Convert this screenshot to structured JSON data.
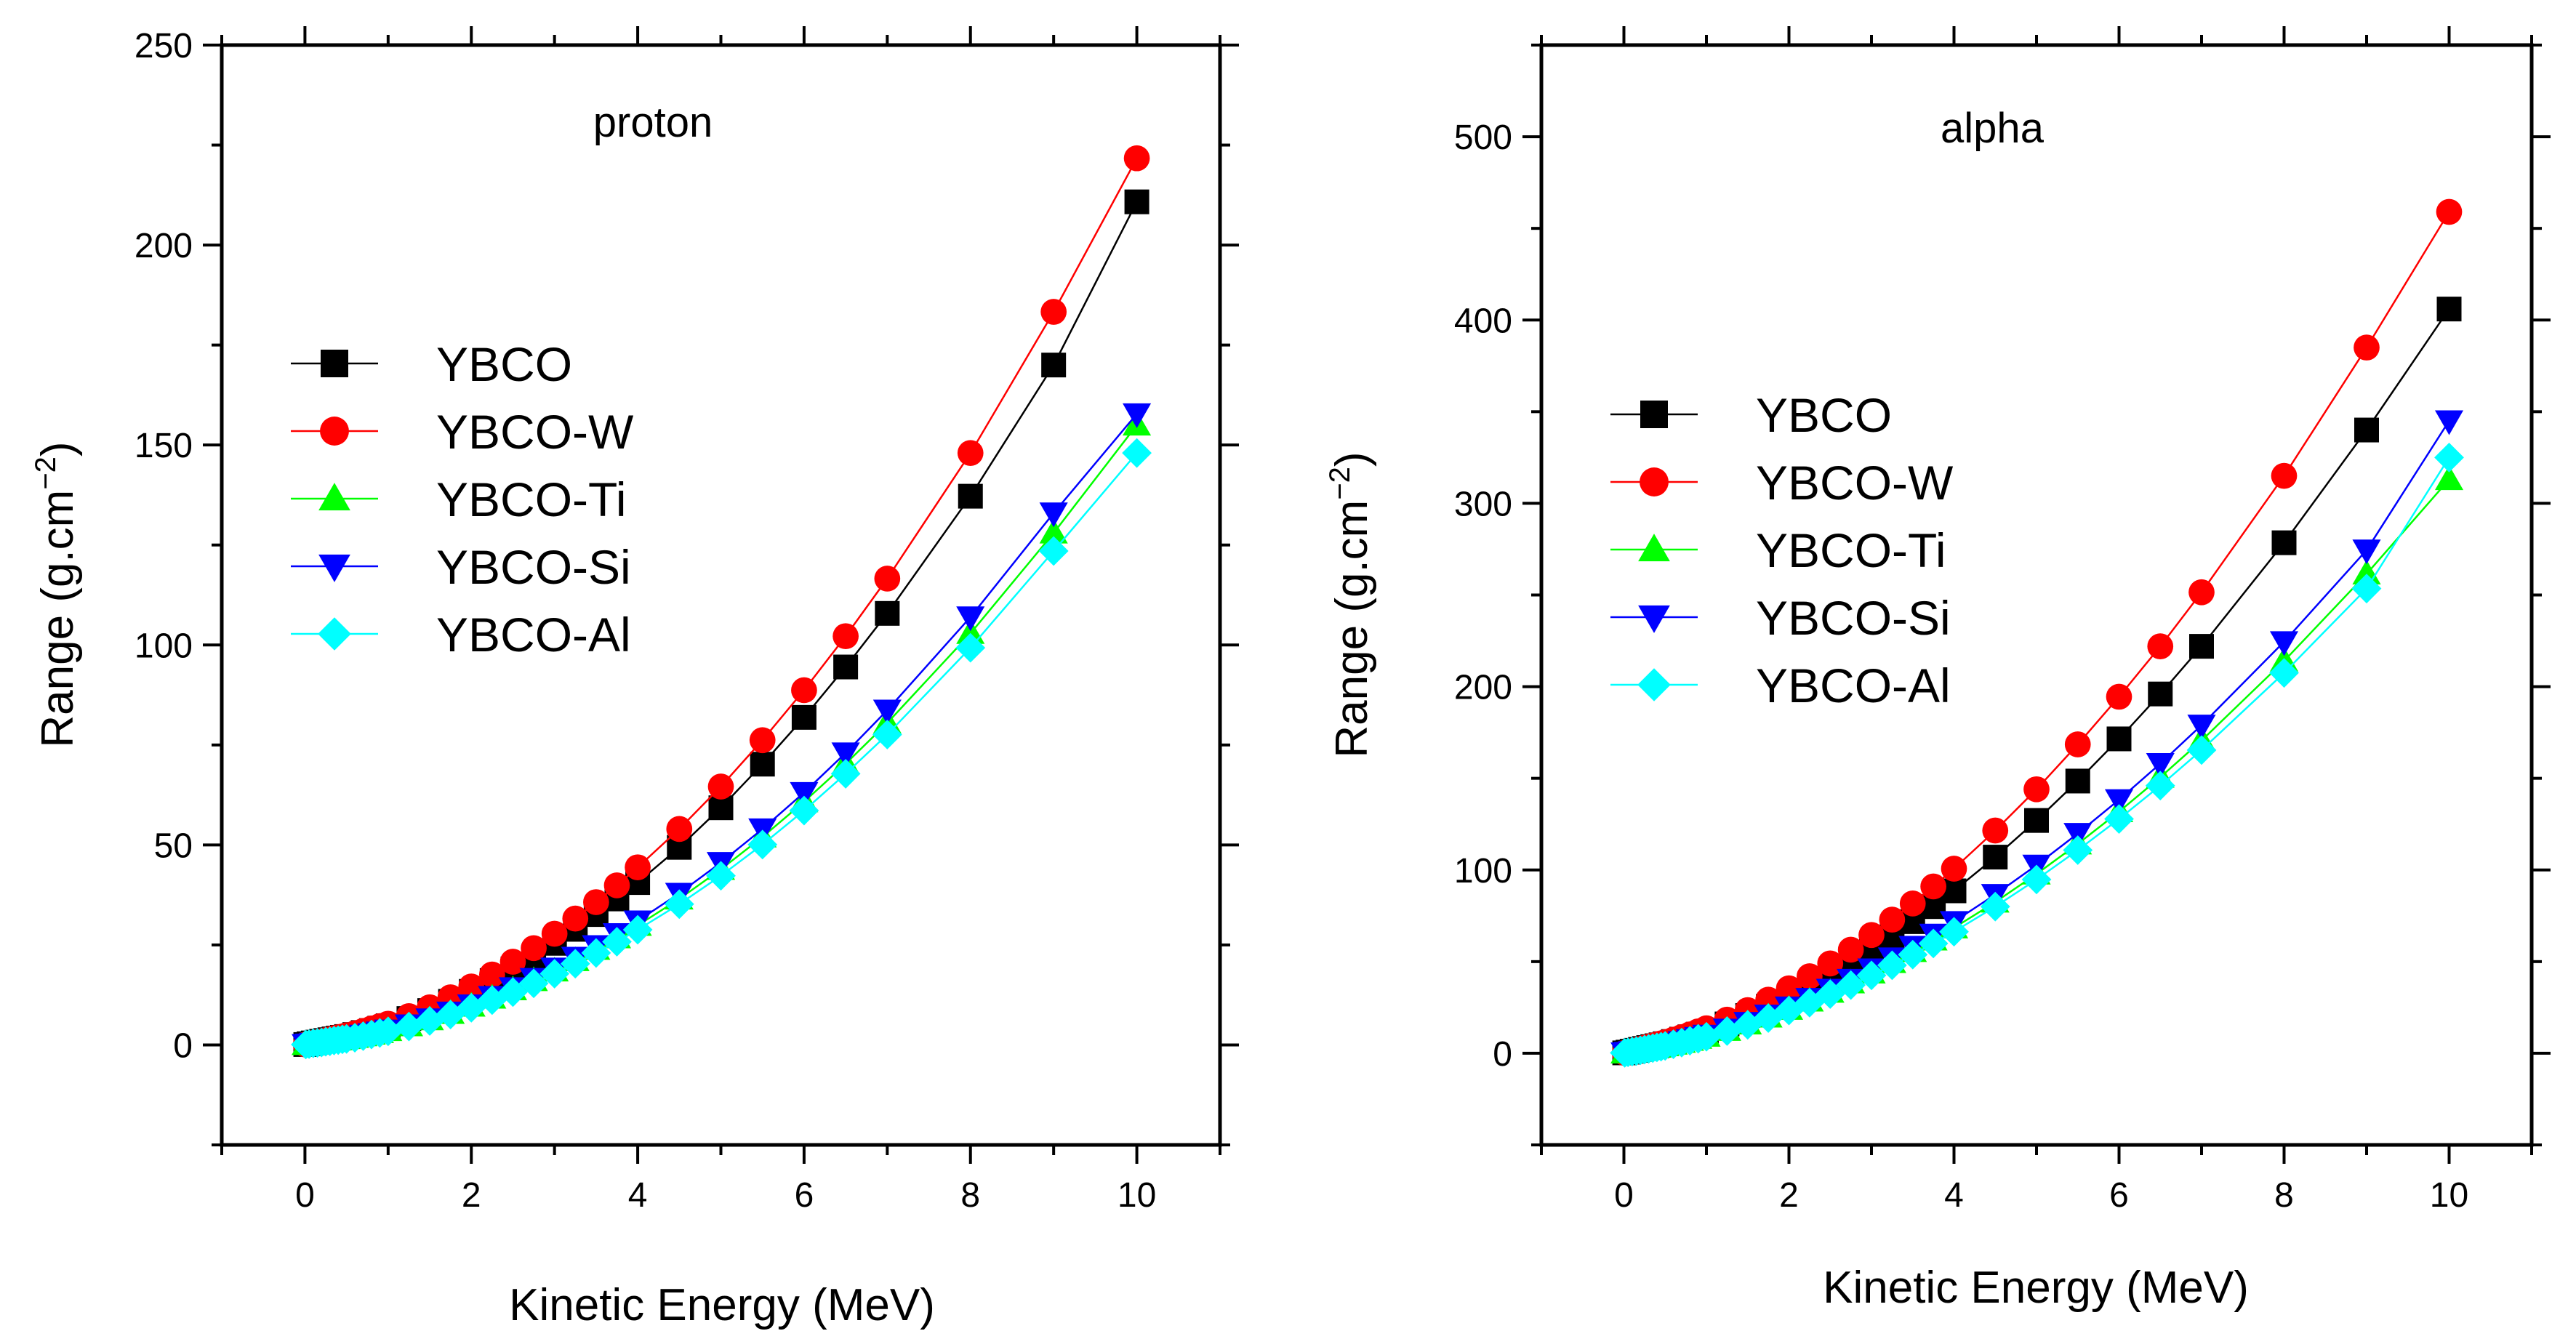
{
  "chart_data": [
    {
      "type": "line",
      "title": "proton",
      "xlabel": "Kinetic Energy (MeV)",
      "ylabel": "Range (g.cm",
      "ylabel_sup": "−2",
      "ylabel_close": ")",
      "xlim": [
        -1,
        11
      ],
      "ylim": [
        -25,
        250
      ],
      "xticks": [
        0,
        2,
        4,
        6,
        8,
        10
      ],
      "yticks": [
        0,
        50,
        100,
        150,
        200,
        250
      ],
      "x": [
        0.01,
        0.05,
        0.1,
        0.15,
        0.2,
        0.25,
        0.3,
        0.35,
        0.4,
        0.45,
        0.5,
        0.6,
        0.7,
        0.8,
        0.9,
        1,
        1.25,
        1.5,
        1.75,
        2,
        2.25,
        2.5,
        2.75,
        3,
        3.25,
        3.5,
        3.75,
        4,
        4.5,
        5,
        5.5,
        6,
        6.5,
        7,
        8,
        9,
        10
      ],
      "series": [
        {
          "name": "YBCO",
          "color": "#000000",
          "marker": "square",
          "values": [
            0.1,
            0.3,
            0.5,
            0.7,
            0.9,
            1.1,
            1.3,
            1.5,
            1.7,
            1.9,
            2.1,
            2.6,
            3.1,
            3.6,
            4.2,
            4.8,
            6.6,
            8.6,
            10.9,
            13.4,
            16.1,
            19.0,
            22.1,
            25.4,
            28.9,
            32.6,
            36.5,
            40.6,
            49.4,
            59.3,
            70.2,
            81.9,
            94.5,
            107.9,
            137.2,
            170.0,
            210.8
          ]
        },
        {
          "name": "YBCO-W",
          "color": "#ff0000",
          "marker": "circle",
          "values": [
            0.1,
            0.3,
            0.5,
            0.7,
            0.9,
            1.2,
            1.4,
            1.7,
            1.9,
            2.1,
            2.4,
            2.9,
            3.5,
            4.1,
            4.7,
            5.3,
            7.2,
            9.4,
            11.9,
            14.6,
            17.6,
            20.8,
            24.2,
            27.8,
            31.6,
            35.7,
            39.9,
            44.4,
            54.0,
            64.6,
            76.2,
            88.7,
            102.2,
            116.6,
            148.0,
            183.3,
            221.7
          ]
        },
        {
          "name": "YBCO-Ti",
          "color": "#00ff00",
          "marker": "triangle-up",
          "values": [
            0.1,
            0.2,
            0.4,
            0.5,
            0.7,
            0.8,
            1.0,
            1.1,
            1.3,
            1.4,
            1.6,
            1.9,
            2.3,
            2.7,
            3.1,
            3.6,
            4.8,
            6.3,
            7.9,
            9.7,
            11.7,
            13.8,
            16.1,
            18.5,
            21.1,
            23.9,
            26.8,
            29.9,
            36.5,
            43.9,
            52.0,
            60.8,
            70.3,
            80.5,
            102.9,
            128.0,
            155.0
          ]
        },
        {
          "name": "YBCO-Si",
          "color": "#0000ff",
          "marker": "triangle-down",
          "values": [
            0.1,
            0.2,
            0.4,
            0.5,
            0.7,
            0.9,
            1.0,
            1.2,
            1.3,
            1.5,
            1.6,
            2.0,
            2.4,
            2.8,
            3.2,
            3.7,
            5.0,
            6.5,
            8.2,
            10.0,
            12.1,
            14.3,
            16.6,
            19.2,
            21.9,
            24.8,
            27.8,
            31.0,
            37.9,
            45.6,
            54.0,
            63.1,
            73.0,
            83.7,
            107.0,
            133.0,
            157.8
          ]
        },
        {
          "name": "YBCO-Al",
          "color": "#00ffff",
          "marker": "diamond",
          "values": [
            0.1,
            0.2,
            0.4,
            0.5,
            0.6,
            0.8,
            0.9,
            1.1,
            1.2,
            1.4,
            1.5,
            1.8,
            2.2,
            2.6,
            3.0,
            3.4,
            4.6,
            6.0,
            7.6,
            9.3,
            11.2,
            13.2,
            15.4,
            17.8,
            20.3,
            23.0,
            25.8,
            28.8,
            35.2,
            42.3,
            50.1,
            58.6,
            67.8,
            77.6,
            99.3,
            123.5,
            148.0
          ]
        }
      ],
      "legend": "left"
    },
    {
      "type": "line",
      "title": "alpha",
      "xlabel": "Kinetic Energy (MeV)",
      "ylabel": "Range (g.cm",
      "ylabel_sup": "−2",
      "ylabel_close": ")",
      "xlim": [
        -1,
        11
      ],
      "ylim": [
        -50,
        550
      ],
      "xticks": [
        0,
        2,
        4,
        6,
        8,
        10
      ],
      "yticks": [
        0,
        100,
        200,
        300,
        400,
        500
      ],
      "x": [
        0.01,
        0.05,
        0.1,
        0.15,
        0.2,
        0.25,
        0.3,
        0.35,
        0.4,
        0.45,
        0.5,
        0.6,
        0.7,
        0.8,
        0.9,
        1,
        1.25,
        1.5,
        1.75,
        2,
        2.25,
        2.5,
        2.75,
        3,
        3.25,
        3.5,
        3.75,
        4,
        4.5,
        5,
        5.5,
        6,
        6.5,
        7,
        8,
        9,
        10
      ],
      "series": [
        {
          "name": "YBCO",
          "color": "#000000",
          "marker": "square",
          "values": [
            0.2,
            0.6,
            1.1,
            1.6,
            2.1,
            2.6,
            3.1,
            3.6,
            4.1,
            4.6,
            5.2,
            6.4,
            7.7,
            9.0,
            10.4,
            11.9,
            16.0,
            20.6,
            25.6,
            31.0,
            36.8,
            43.0,
            49.6,
            56.6,
            64.0,
            71.8,
            80.0,
            88.6,
            107.0,
            127.0,
            148.5,
            171.5,
            196.0,
            222.0,
            278.5,
            340.0,
            406.0
          ]
        },
        {
          "name": "YBCO-W",
          "color": "#ff0000",
          "marker": "circle",
          "values": [
            0.2,
            0.7,
            1.2,
            1.8,
            2.4,
            3.0,
            3.6,
            4.2,
            4.8,
            5.4,
            6.0,
            7.4,
            8.8,
            10.3,
            11.9,
            13.6,
            18.3,
            23.5,
            29.2,
            35.4,
            42.0,
            49.0,
            56.5,
            64.5,
            72.9,
            81.7,
            91.0,
            100.7,
            121.5,
            144.0,
            168.5,
            194.5,
            222.0,
            251.5,
            315.0,
            385.0,
            459.0
          ]
        },
        {
          "name": "YBCO-Ti",
          "color": "#00ff00",
          "marker": "triangle-up",
          "values": [
            0.2,
            0.5,
            0.9,
            1.3,
            1.7,
            2.1,
            2.5,
            2.9,
            3.3,
            3.7,
            4.1,
            5.0,
            6.0,
            7.1,
            8.2,
            9.3,
            12.5,
            16.0,
            19.8,
            24.0,
            28.5,
            33.3,
            38.4,
            43.8,
            49.5,
            55.5,
            61.8,
            68.4,
            82.5,
            97.8,
            114.2,
            131.8,
            150.6,
            170.6,
            214.0,
            261.5,
            313.0
          ]
        },
        {
          "name": "YBCO-Si",
          "color": "#0000ff",
          "marker": "triangle-down",
          "values": [
            0.2,
            0.5,
            0.9,
            1.3,
            1.8,
            2.2,
            2.6,
            3.0,
            3.5,
            3.9,
            4.3,
            5.3,
            6.3,
            7.4,
            8.6,
            9.8,
            13.1,
            16.8,
            20.8,
            25.2,
            29.9,
            34.9,
            40.3,
            46.0,
            52.0,
            58.3,
            64.9,
            71.8,
            86.6,
            102.6,
            119.9,
            138.3,
            158.0,
            179.0,
            224.5,
            274.5,
            345.0
          ]
        },
        {
          "name": "YBCO-Al",
          "color": "#00ffff",
          "marker": "diamond",
          "values": [
            0.2,
            0.5,
            0.9,
            1.2,
            1.6,
            2.0,
            2.4,
            2.8,
            3.2,
            3.6,
            4.0,
            4.9,
            5.8,
            6.8,
            7.9,
            9.0,
            12.1,
            15.5,
            19.2,
            23.3,
            27.6,
            32.3,
            37.2,
            42.5,
            48.0,
            53.8,
            59.9,
            66.3,
            80.0,
            94.8,
            110.8,
            127.8,
            146.0,
            165.4,
            207.5,
            253.5,
            325.0
          ]
        }
      ],
      "legend": "left"
    }
  ]
}
